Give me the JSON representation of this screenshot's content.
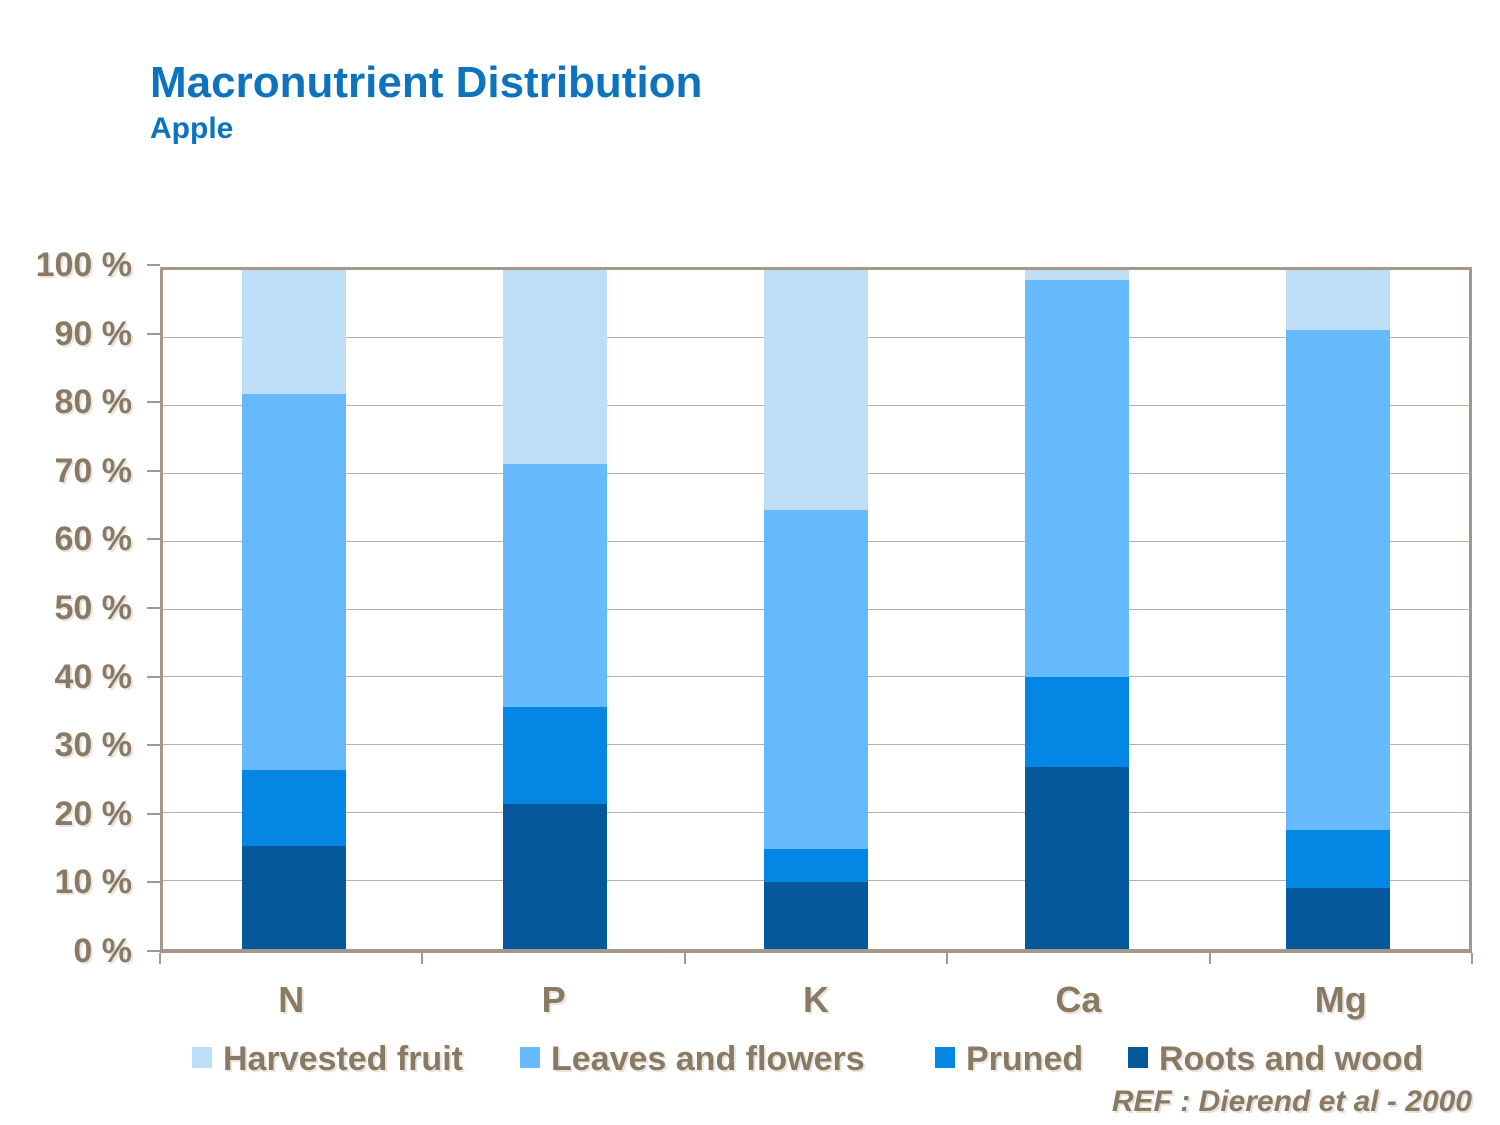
{
  "header": {
    "title": "Macronutrient Distribution",
    "subtitle": "Apple"
  },
  "chart_data": {
    "type": "bar",
    "stacked": true,
    "unit": "%",
    "title": "Macronutrient Distribution",
    "subtitle": "Apple",
    "categories": [
      "N",
      "P",
      "K",
      "Ca",
      "Mg"
    ],
    "series": [
      {
        "name": "Roots and wood",
        "color": "#06589c",
        "values": [
          15.1,
          21.3,
          9.8,
          26.8,
          9.0
        ]
      },
      {
        "name": "Pruned",
        "color": "#0486e5",
        "values": [
          11.3,
          14.3,
          4.9,
          13.2,
          8.5
        ]
      },
      {
        "name": "Leaves and flowers",
        "color": "#66b9fa",
        "values": [
          55.3,
          35.8,
          50.0,
          58.6,
          73.6
        ]
      },
      {
        "name": "Harvested fruit",
        "color": "#bedef8",
        "values": [
          18.3,
          28.6,
          35.3,
          1.4,
          8.9
        ]
      }
    ],
    "y_tick_labels": [
      "100 %",
      "90 %",
      "80 %",
      "70 %",
      "60 %",
      "50 %",
      "40 %",
      "30 %",
      "20 %",
      "10 %",
      "0 %"
    ],
    "ylim": [
      0,
      100
    ],
    "y_step": 10,
    "grid": true,
    "legend_position": "bottom",
    "legend_order": [
      "Harvested fruit",
      "Leaves and flowers",
      "Pruned",
      "Roots and wood"
    ]
  },
  "footer": {
    "ref_label": "REF :  Dierend et al - 2000"
  },
  "colors": {
    "title_blue": "#0d73bd",
    "axis_text_brown": "#8a7a64",
    "frame_brown": "#a5988a",
    "gridline_tan": "#bbafa1",
    "background": "#ffffff"
  }
}
